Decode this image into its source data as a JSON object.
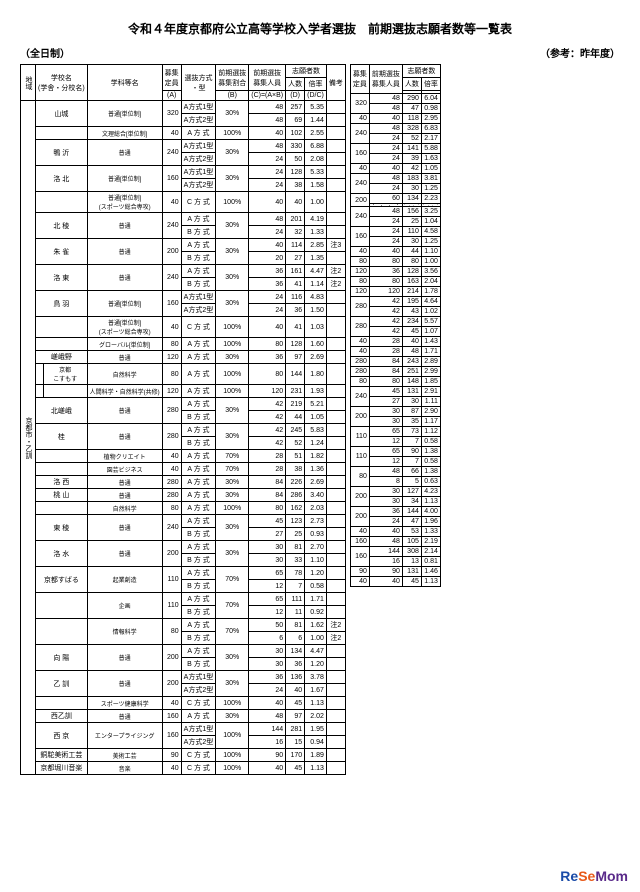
{
  "title": "令和４年度京都府公立高等学校入学者選抜　前期選抜志願者数等一覧表",
  "subtitle_left": "（全日制）",
  "subtitle_right": "（参考：昨年度）",
  "headers": {
    "main": [
      "地域",
      "学校名\n(学舎・分校名)",
      "学科等名",
      "募集\n定員",
      "選抜方式\n・型",
      "前期選抜\n募集割合",
      "前期選抜\n募集人員",
      "志願者数",
      "",
      "備考"
    ],
    "sub_app": [
      "人数",
      "倍率"
    ],
    "ref": [
      "募集\n定員",
      "前期選抜\n募集人員",
      "志願者数",
      ""
    ],
    "ref_sub": [
      "人数",
      "倍率"
    ],
    "code": [
      "(A)",
      "",
      "(B)",
      "(C)=(A×B)",
      "(D)",
      "(D/C)"
    ]
  },
  "region": "京都市・乙訓",
  "rows": [
    {
      "school": "山城",
      "dept": "普通[単位制]",
      "cap": 320,
      "lines": [
        {
          "m": "A方式1型",
          "p": "30%",
          "n": 48,
          "a": 257,
          "r": "5.35"
        },
        {
          "m": "A方式2型",
          "p": "",
          "n": 48,
          "a": 69,
          "r": "1.44"
        }
      ],
      "ref": {
        "cap": 320,
        "lines": [
          {
            "n": 48,
            "a": 290,
            "r": "6.04"
          },
          {
            "n": 48,
            "a": 47,
            "r": "0.98"
          }
        ]
      }
    },
    {
      "school": "",
      "dept": "文理総合[単位制]",
      "cap": 40,
      "lines": [
        {
          "m": "A 方 式",
          "p": "100%",
          "n": 40,
          "a": 102,
          "r": "2.55"
        }
      ],
      "ref": {
        "cap": 40,
        "lines": [
          {
            "n": 40,
            "a": 118,
            "r": "2.95"
          }
        ]
      }
    },
    {
      "school": "鴨 沂",
      "dept": "普通",
      "cap": 240,
      "lines": [
        {
          "m": "A方式1型",
          "p": "30%",
          "n": 48,
          "a": 330,
          "r": "6.88"
        },
        {
          "m": "A方式2型",
          "p": "",
          "n": 24,
          "a": 50,
          "r": "2.08"
        }
      ],
      "ref": {
        "cap": 240,
        "lines": [
          {
            "n": 48,
            "a": 328,
            "r": "6.83"
          },
          {
            "n": 24,
            "a": 52,
            "r": "2.17"
          }
        ]
      }
    },
    {
      "school": "洛 北",
      "dept": "普通[単位制]",
      "cap": 160,
      "lines": [
        {
          "m": "A方式1型",
          "p": "30%",
          "n": 24,
          "a": 128,
          "r": "5.33"
        },
        {
          "m": "A方式2型",
          "p": "",
          "n": 24,
          "a": 38,
          "r": "1.58"
        }
      ],
      "ref": {
        "cap": 160,
        "lines": [
          {
            "n": 24,
            "a": 141,
            "r": "5.88"
          },
          {
            "n": 24,
            "a": 39,
            "r": "1.63"
          }
        ]
      }
    },
    {
      "school": "",
      "dept": "普通[単位制]\n(スポーツ総合専攻)",
      "cap": 40,
      "lines": [
        {
          "m": "C 方 式",
          "p": "100%",
          "n": 40,
          "a": 40,
          "r": "1.00"
        }
      ],
      "ref": {
        "cap": 40,
        "lines": [
          {
            "n": 40,
            "a": 42,
            "r": "1.05"
          }
        ]
      }
    },
    {
      "school": "北 稜",
      "dept": "普通",
      "cap": 240,
      "lines": [
        {
          "m": "A 方 式",
          "p": "30%",
          "n": 48,
          "a": 201,
          "r": "4.19"
        },
        {
          "m": "B 方 式",
          "p": "",
          "n": 24,
          "a": 32,
          "r": "1.33"
        }
      ],
      "ref": {
        "cap": 240,
        "lines": [
          {
            "n": 48,
            "a": 183,
            "r": "3.81"
          },
          {
            "n": 24,
            "a": 30,
            "r": "1.25"
          }
        ]
      }
    },
    {
      "school": "朱 雀",
      "dept": "普通",
      "cap": 200,
      "lines": [
        {
          "m": "A 方 式",
          "p": "30%",
          "n": 40,
          "a": 114,
          "r": "2.85",
          "note": "注3"
        },
        {
          "m": "B 方 式",
          "p": "",
          "n": 20,
          "a": 27,
          "r": "1.35"
        }
      ],
      "ref": {
        "cap": 200,
        "lines": [
          {
            "n": 60,
            "a": 134,
            "r": "2.23"
          },
          {
            "diag": true
          }
        ]
      }
    },
    {
      "school": "洛 東",
      "dept": "普通",
      "cap": 240,
      "lines": [
        {
          "m": "A 方 式",
          "p": "30%",
          "n": 36,
          "a": 161,
          "r": "4.47",
          "note": "注2"
        },
        {
          "m": "B 方 式",
          "p": "",
          "n": 36,
          "a": 41,
          "r": "1.14",
          "note": "注2"
        }
      ],
      "ref": {
        "cap": 240,
        "lines": [
          {
            "n": 48,
            "a": 156,
            "r": "3.25"
          },
          {
            "n": 24,
            "a": 25,
            "r": "1.04"
          }
        ]
      }
    },
    {
      "school": "鳥 羽",
      "dept": "普通[単位制]",
      "cap": 160,
      "lines": [
        {
          "m": "A方式1型",
          "p": "30%",
          "n": 24,
          "a": 116,
          "r": "4.83"
        },
        {
          "m": "A方式2型",
          "p": "",
          "n": 24,
          "a": 36,
          "r": "1.50"
        }
      ],
      "ref": {
        "cap": 160,
        "lines": [
          {
            "n": 24,
            "a": 110,
            "r": "4.58"
          },
          {
            "n": 24,
            "a": 30,
            "r": "1.25"
          }
        ]
      }
    },
    {
      "school": "",
      "dept": "普通[単位制]\n(スポーツ総合専攻)",
      "cap": 40,
      "lines": [
        {
          "m": "C 方 式",
          "p": "100%",
          "n": 40,
          "a": 41,
          "r": "1.03"
        }
      ],
      "ref": {
        "cap": 40,
        "lines": [
          {
            "n": 40,
            "a": 44,
            "r": "1.10"
          }
        ]
      }
    },
    {
      "school": "",
      "dept": "グローバル[単位制]",
      "cap": 80,
      "lines": [
        {
          "m": "A 方 式",
          "p": "100%",
          "n": 80,
          "a": 128,
          "r": "1.60"
        }
      ],
      "ref": {
        "cap": 80,
        "lines": [
          {
            "n": 80,
            "a": 80,
            "r": "1.00"
          }
        ]
      }
    },
    {
      "school": "嵯峨野",
      "dept": "普通",
      "cap": 120,
      "lines": [
        {
          "m": "A 方 式",
          "p": "30%",
          "n": 36,
          "a": 97,
          "r": "2.69"
        }
      ],
      "ref": {
        "cap": 120,
        "lines": [
          {
            "n": 36,
            "a": 128,
            "r": "3.56"
          }
        ]
      }
    },
    {
      "school": "",
      "sub": "京都\nこすもす",
      "dept": "自然科学",
      "cap": 80,
      "lines": [
        {
          "m": "A 方 式",
          "p": "100%",
          "n": 80,
          "a": 144,
          "r": "1.80"
        }
      ],
      "ref": {
        "cap": 80,
        "lines": [
          {
            "n": 80,
            "a": 163,
            "r": "2.04"
          }
        ]
      }
    },
    {
      "school": "",
      "sub": "",
      "dept": "人間科学・自然科学(共修)",
      "cap": 120,
      "lines": [
        {
          "m": "A 方 式",
          "p": "100%",
          "n": 120,
          "a": 231,
          "r": "1.93"
        }
      ],
      "ref": {
        "cap": 120,
        "lines": [
          {
            "n": 120,
            "a": 214,
            "r": "1.78"
          }
        ]
      }
    },
    {
      "school": "北嵯峨",
      "dept": "普通",
      "cap": 280,
      "lines": [
        {
          "m": "A 方 式",
          "p": "30%",
          "n": 42,
          "a": 219,
          "r": "5.21"
        },
        {
          "m": "B 方 式",
          "p": "",
          "n": 42,
          "a": 44,
          "r": "1.05"
        }
      ],
      "ref": {
        "cap": 280,
        "lines": [
          {
            "n": 42,
            "a": 195,
            "r": "4.64"
          },
          {
            "n": 42,
            "a": 43,
            "r": "1.02"
          }
        ]
      }
    },
    {
      "school": "桂",
      "dept": "普通",
      "cap": 280,
      "lines": [
        {
          "m": "A 方 式",
          "p": "30%",
          "n": 42,
          "a": 245,
          "r": "5.83"
        },
        {
          "m": "B 方 式",
          "p": "",
          "n": 42,
          "a": 52,
          "r": "1.24"
        }
      ],
      "ref": {
        "cap": 280,
        "lines": [
          {
            "n": 42,
            "a": 234,
            "r": "5.57"
          },
          {
            "n": 42,
            "a": 45,
            "r": "1.07"
          }
        ]
      }
    },
    {
      "school": "",
      "dept": "植物クリエイト",
      "cap": 40,
      "lines": [
        {
          "m": "A 方 式",
          "p": "70%",
          "n": 28,
          "a": 51,
          "r": "1.82"
        }
      ],
      "ref": {
        "cap": 40,
        "lines": [
          {
            "n": 28,
            "a": 40,
            "r": "1.43"
          }
        ]
      }
    },
    {
      "school": "",
      "dept": "園芸ビジネス",
      "cap": 40,
      "lines": [
        {
          "m": "A 方 式",
          "p": "70%",
          "n": 28,
          "a": 38,
          "r": "1.36"
        }
      ],
      "ref": {
        "cap": 40,
        "lines": [
          {
            "n": 28,
            "a": 48,
            "r": "1.71"
          }
        ]
      }
    },
    {
      "school": "洛 西",
      "dept": "普通",
      "cap": 280,
      "lines": [
        {
          "m": "A 方 式",
          "p": "30%",
          "n": 84,
          "a": 226,
          "r": "2.69"
        }
      ],
      "ref": {
        "cap": 280,
        "lines": [
          {
            "n": 84,
            "a": 243,
            "r": "2.89"
          }
        ]
      }
    },
    {
      "school": "桃 山",
      "dept": "普通",
      "cap": 280,
      "lines": [
        {
          "m": "A 方 式",
          "p": "30%",
          "n": 84,
          "a": 286,
          "r": "3.40"
        }
      ],
      "ref": {
        "cap": 280,
        "lines": [
          {
            "n": 84,
            "a": 251,
            "r": "2.99"
          }
        ]
      }
    },
    {
      "school": "",
      "dept": "自然科学",
      "cap": 80,
      "lines": [
        {
          "m": "A 方 式",
          "p": "100%",
          "n": 80,
          "a": 162,
          "r": "2.03"
        }
      ],
      "ref": {
        "cap": 80,
        "lines": [
          {
            "n": 80,
            "a": 148,
            "r": "1.85"
          }
        ]
      }
    },
    {
      "school": "東 稜",
      "dept": "普通",
      "cap": 240,
      "lines": [
        {
          "m": "A 方 式",
          "p": "30%",
          "n": 45,
          "a": 123,
          "r": "2.73"
        },
        {
          "m": "B 方 式",
          "p": "",
          "n": 27,
          "a": 25,
          "r": "0.93"
        }
      ],
      "ref": {
        "cap": 240,
        "lines": [
          {
            "n": 45,
            "a": 131,
            "r": "2.91"
          },
          {
            "n": 27,
            "a": 30,
            "r": "1.11"
          }
        ]
      }
    },
    {
      "school": "洛 水",
      "dept": "普通",
      "cap": 200,
      "lines": [
        {
          "m": "A 方 式",
          "p": "30%",
          "n": 30,
          "a": 81,
          "r": "2.70"
        },
        {
          "m": "B 方 式",
          "p": "",
          "n": 30,
          "a": 33,
          "r": "1.10"
        }
      ],
      "ref": {
        "cap": 200,
        "lines": [
          {
            "n": 30,
            "a": 87,
            "r": "2.90"
          },
          {
            "n": 30,
            "a": 35,
            "r": "1.17"
          }
        ]
      }
    },
    {
      "school": "京都すばる",
      "dept": "起業創造",
      "cap": 110,
      "lines": [
        {
          "m": "A 方 式",
          "p": "70%",
          "n": 65,
          "a": 78,
          "r": "1.20"
        },
        {
          "m": "B 方 式",
          "p": "",
          "n": 12,
          "a": 7,
          "r": "0.58"
        }
      ],
      "ref": {
        "cap": 110,
        "lines": [
          {
            "n": 65,
            "a": 73,
            "r": "1.12"
          },
          {
            "n": 12,
            "a": 7,
            "r": "0.58"
          }
        ]
      }
    },
    {
      "school": "",
      "dept": "企画",
      "cap": 110,
      "lines": [
        {
          "m": "A 方 式",
          "p": "70%",
          "n": 65,
          "a": 111,
          "r": "1.71"
        },
        {
          "m": "B 方 式",
          "p": "",
          "n": 12,
          "a": 11,
          "r": "0.92"
        }
      ],
      "ref": {
        "cap": 110,
        "lines": [
          {
            "n": 65,
            "a": 90,
            "r": "1.38"
          },
          {
            "n": 12,
            "a": 7,
            "r": "0.58"
          }
        ]
      }
    },
    {
      "school": "",
      "dept": "情報科学",
      "cap": 80,
      "lines": [
        {
          "m": "A 方 式",
          "p": "70%",
          "n": 50,
          "a": 81,
          "r": "1.62",
          "note": "注2"
        },
        {
          "m": "B 方 式",
          "p": "",
          "n": 6,
          "a": 6,
          "r": "1.00",
          "note": "注2"
        }
      ],
      "ref": {
        "cap": 80,
        "lines": [
          {
            "n": 48,
            "a": 66,
            "r": "1.38"
          },
          {
            "n": 8,
            "a": 5,
            "r": "0.63"
          }
        ]
      }
    },
    {
      "school": "向 陽",
      "dept": "普通",
      "cap": 200,
      "lines": [
        {
          "m": "A 方 式",
          "p": "30%",
          "n": 30,
          "a": 134,
          "r": "4.47"
        },
        {
          "m": "B 方 式",
          "p": "",
          "n": 30,
          "a": 36,
          "r": "1.20"
        }
      ],
      "ref": {
        "cap": 200,
        "lines": [
          {
            "n": 30,
            "a": 127,
            "r": "4.23"
          },
          {
            "n": 30,
            "a": 34,
            "r": "1.13"
          }
        ]
      }
    },
    {
      "school": "乙 訓",
      "dept": "普通",
      "cap": 200,
      "lines": [
        {
          "m": "A方式1型",
          "p": "30%",
          "n": 36,
          "a": 136,
          "r": "3.78"
        },
        {
          "m": "A方式2型",
          "p": "",
          "n": 24,
          "a": 40,
          "r": "1.67"
        }
      ],
      "ref": {
        "cap": 200,
        "lines": [
          {
            "n": 36,
            "a": 144,
            "r": "4.00"
          },
          {
            "n": 24,
            "a": 47,
            "r": "1.96"
          }
        ]
      }
    },
    {
      "school": "",
      "dept": "スポーツ健康科学",
      "cap": 40,
      "lines": [
        {
          "m": "C 方 式",
          "p": "100%",
          "n": 40,
          "a": 45,
          "r": "1.13"
        }
      ],
      "ref": {
        "cap": 40,
        "lines": [
          {
            "n": 40,
            "a": 53,
            "r": "1.33"
          }
        ]
      }
    },
    {
      "school": "西乙訓",
      "dept": "普通",
      "cap": 160,
      "lines": [
        {
          "m": "A 方 式",
          "p": "30%",
          "n": 48,
          "a": 97,
          "r": "2.02"
        }
      ],
      "ref": {
        "cap": 160,
        "lines": [
          {
            "n": 48,
            "a": 105,
            "r": "2.19"
          }
        ]
      }
    },
    {
      "school": "西 京",
      "dept": "エンタープライジング",
      "cap": 160,
      "lines": [
        {
          "m": "A方式1型",
          "p": "100%",
          "n": 144,
          "a": 281,
          "r": "1.95"
        },
        {
          "m": "A方式2型",
          "p": "",
          "n": 16,
          "a": 15,
          "r": "0.94"
        }
      ],
      "ref": {
        "cap": 160,
        "lines": [
          {
            "n": 144,
            "a": 308,
            "r": "2.14"
          },
          {
            "n": 16,
            "a": 13,
            "r": "0.81"
          }
        ]
      }
    },
    {
      "school": "銅駝美術工芸",
      "dept": "美術工芸",
      "cap": 90,
      "lines": [
        {
          "m": "C 方 式",
          "p": "100%",
          "n": 90,
          "a": 170,
          "r": "1.89"
        }
      ],
      "ref": {
        "cap": 90,
        "lines": [
          {
            "n": 90,
            "a": 131,
            "r": "1.46"
          }
        ]
      }
    },
    {
      "school": "京都堀川音楽",
      "dept": "音楽",
      "cap": 40,
      "lines": [
        {
          "m": "C 方 式",
          "p": "100%",
          "n": 40,
          "a": 45,
          "r": "1.13"
        }
      ],
      "ref": {
        "cap": 40,
        "lines": [
          {
            "n": 40,
            "a": 45,
            "r": "1.13"
          }
        ]
      }
    }
  ],
  "logo": {
    "re": "Re",
    "se": "Se",
    "m": "Mom"
  }
}
